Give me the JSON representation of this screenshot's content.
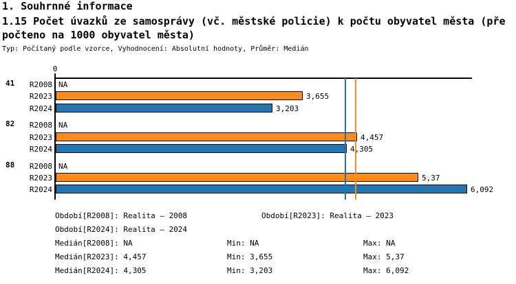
{
  "header": {
    "section_title": "1. Souhrnné informace",
    "indicator_title_line1": "1.15 Počet úvazků ze samosprávy (vč. městské policie) k počtu obyvatel města (pře",
    "indicator_title_line2": "počteno na 1000 obyvatel města)",
    "meta_line": "Typ: Počítaný podle vzorce, Vyhodnocení: Absolutní hodnoty, Průměr: Medián"
  },
  "chart_data": {
    "type": "bar",
    "orientation": "horizontal",
    "title": "1.15 Počet úvazků ze samosprávy (vč. městské policie) k počtu obyvatel města (přepočteno na 1000 obyvatel města)",
    "x_axis": {
      "origin_label": "0",
      "min": 0,
      "max": 6.17,
      "gridlines": false
    },
    "categories": [
      "41",
      "82",
      "88"
    ],
    "series": [
      {
        "name": "R2008",
        "color": null,
        "values": [
          null,
          null,
          null
        ],
        "labels": [
          "NA",
          "NA",
          "NA"
        ]
      },
      {
        "name": "R2023",
        "color": "#FF8C1A",
        "values": [
          3.655,
          4.457,
          5.37
        ],
        "labels": [
          "3,655",
          "4,457",
          "5,37"
        ]
      },
      {
        "name": "R2024",
        "color": "#2077B4",
        "values": [
          3.203,
          4.305,
          6.092
        ],
        "labels": [
          "3,203",
          "4,305",
          "6,092"
        ]
      }
    ],
    "median_lines": [
      {
        "name": "Medián[R2024]",
        "value": 4.305,
        "color": "#2077B4"
      },
      {
        "name": "Medián[R2023]",
        "value": 4.457,
        "color": "#FF8C1A"
      }
    ],
    "value_format": "czech-decimal-comma",
    "legend_position": "bottom"
  },
  "footer": {
    "period_r2008": "Období[R2008]: Realita – 2008",
    "period_r2023": "Období[R2023]: Realita – 2023",
    "period_r2024": "Období[R2024]: Realita – 2024",
    "median_r2008": "Medián[R2008]: NA",
    "min_r2008": "Min: NA",
    "max_r2008": "Max: NA",
    "median_r2023": "Medián[R2023]: 4,457",
    "min_r2023": "Min: 3,655",
    "max_r2023": "Max: 5,37",
    "median_r2024": "Medián[R2024]: 4,305",
    "min_r2024": "Min: 3,203",
    "max_r2024": "Max: 6,092"
  }
}
